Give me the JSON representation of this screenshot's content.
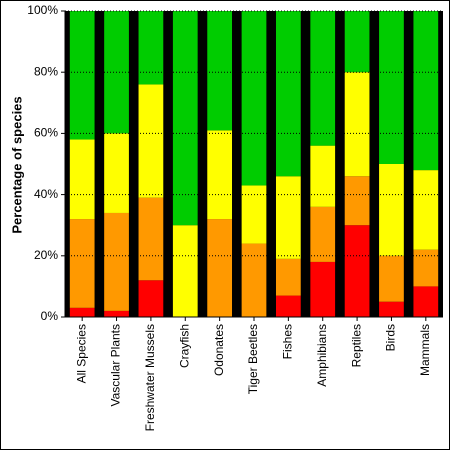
{
  "chart_data": {
    "type": "bar",
    "stacked": true,
    "title": "",
    "xlabel": "",
    "ylabel": "Percentage of species",
    "ylim": [
      0,
      100
    ],
    "yticks": [
      "0%",
      "20%",
      "40%",
      "60%",
      "80%",
      "100%"
    ],
    "grid": true,
    "legend": "none",
    "categories": [
      "All Species",
      "Vascular Plants",
      "Freshwater Mussels",
      "Crayfish",
      "Odonates",
      "Tiger Beetles",
      "Fishes",
      "Amphibians",
      "Reptiles",
      "Birds",
      "Mammals"
    ],
    "series": [
      {
        "color": "#ff0000",
        "values": [
          3,
          2,
          12,
          0,
          0,
          0,
          7,
          18,
          30,
          5,
          10
        ]
      },
      {
        "color": "#ff9900",
        "values": [
          29,
          32,
          27,
          0,
          32,
          24,
          12,
          18,
          16,
          15,
          12
        ]
      },
      {
        "color": "#ffff00",
        "values": [
          26,
          26,
          37,
          30,
          29,
          19,
          27,
          20,
          34,
          30,
          26
        ]
      },
      {
        "color": "#00cc00",
        "values": [
          42,
          40,
          24,
          70,
          39,
          57,
          54,
          44,
          20,
          50,
          52
        ]
      }
    ]
  }
}
